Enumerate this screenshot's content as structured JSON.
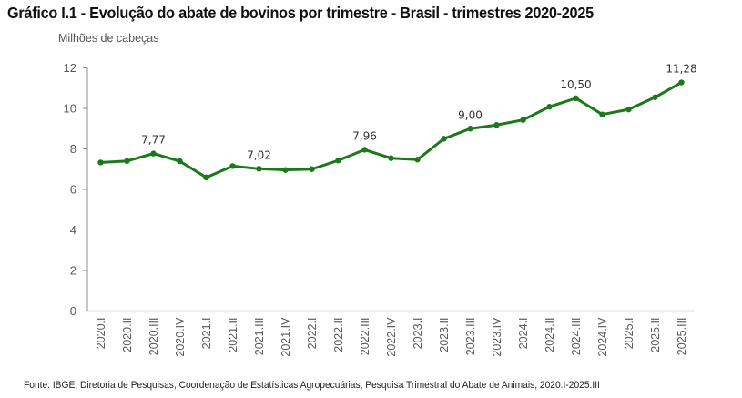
{
  "title": "Gráfico I.1 - Evolução do abate de bovinos por trimestre - Brasil - trimestres 2020-2025",
  "unit_label": "Milhões de cabeças",
  "source": "Fonte: IBGE, Diretoria de Pesquisas, Coordenação de Estatísticas Agropecuárias, Pesquisa Trimestral do Abate de Animais, 2020.I-2025.III",
  "colors": {
    "series": "#1a7a1a",
    "axis": "#8c8c8c",
    "text": "#595959"
  },
  "chart_data": {
    "type": "line",
    "title": "Gráfico I.1 - Evolução do abate de bovinos por trimestre - Brasil - trimestres 2020-2025",
    "xlabel": "",
    "ylabel": "Milhões de cabeças",
    "ylim": [
      0,
      12
    ],
    "yticks": [
      0,
      2,
      4,
      6,
      8,
      10,
      12
    ],
    "ytick_labels": [
      "0",
      "2",
      "4",
      "6",
      "8",
      "10",
      "12"
    ],
    "grid": false,
    "legend": "none",
    "categories": [
      "2020.I",
      "2020.II",
      "2020.III",
      "2020.IV",
      "2021.I",
      "2021.II",
      "2021.III",
      "2021.IV",
      "2022.I",
      "2022.II",
      "2022.III",
      "2022.IV",
      "2023.I",
      "2023.II",
      "2023.III",
      "2023.IV",
      "2024.I",
      "2024.II",
      "2024.III",
      "2024.IV",
      "2025.I",
      "2025.II",
      "2025.III"
    ],
    "series": [
      {
        "name": "Abate de bovinos",
        "values": [
          7.33,
          7.4,
          7.77,
          7.39,
          6.59,
          7.15,
          7.02,
          6.96,
          7.0,
          7.43,
          7.96,
          7.54,
          7.47,
          8.5,
          9.0,
          9.18,
          9.43,
          10.08,
          10.5,
          9.7,
          9.95,
          10.55,
          11.28
        ]
      }
    ],
    "data_labels": [
      {
        "category": "2020.III",
        "value": 7.77,
        "text": "7,77"
      },
      {
        "category": "2021.III",
        "value": 7.02,
        "text": "7,02"
      },
      {
        "category": "2022.III",
        "value": 7.96,
        "text": "7,96"
      },
      {
        "category": "2023.III",
        "value": 9.0,
        "text": "9,00"
      },
      {
        "category": "2024.III",
        "value": 10.5,
        "text": "10,50"
      },
      {
        "category": "2025.III",
        "value": 11.28,
        "text": "11,28"
      }
    ]
  }
}
